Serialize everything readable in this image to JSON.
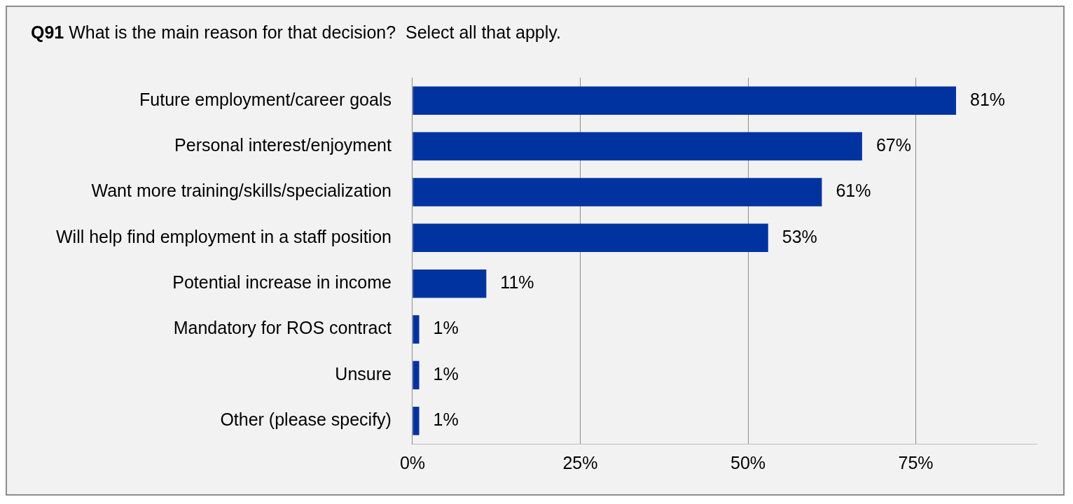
{
  "chart_data": {
    "type": "bar",
    "orientation": "horizontal",
    "title": "Q91 What is the main reason for that decision?  Select all that apply.",
    "categories": [
      "Future employment/career goals",
      "Personal interest/enjoyment",
      "Want more training/skills/specialization",
      "Will help find employment in a staff position",
      "Potential increase in income",
      "Mandatory for ROS contract",
      "Unsure",
      "Other (please specify)"
    ],
    "values": [
      81,
      67,
      61,
      53,
      11,
      1,
      1,
      1
    ],
    "value_labels": [
      "81%",
      "67%",
      "61%",
      "53%",
      "11%",
      "1%",
      "1%",
      "1%"
    ],
    "color": "#0033a0",
    "xlim": [
      0,
      93
    ],
    "xticks": [
      {
        "value": 0,
        "label": "0%"
      },
      {
        "value": 25,
        "label": "25%"
      },
      {
        "value": 50,
        "label": "50%"
      },
      {
        "value": 75,
        "label": "75%"
      }
    ],
    "grid": "x",
    "legend": false
  }
}
